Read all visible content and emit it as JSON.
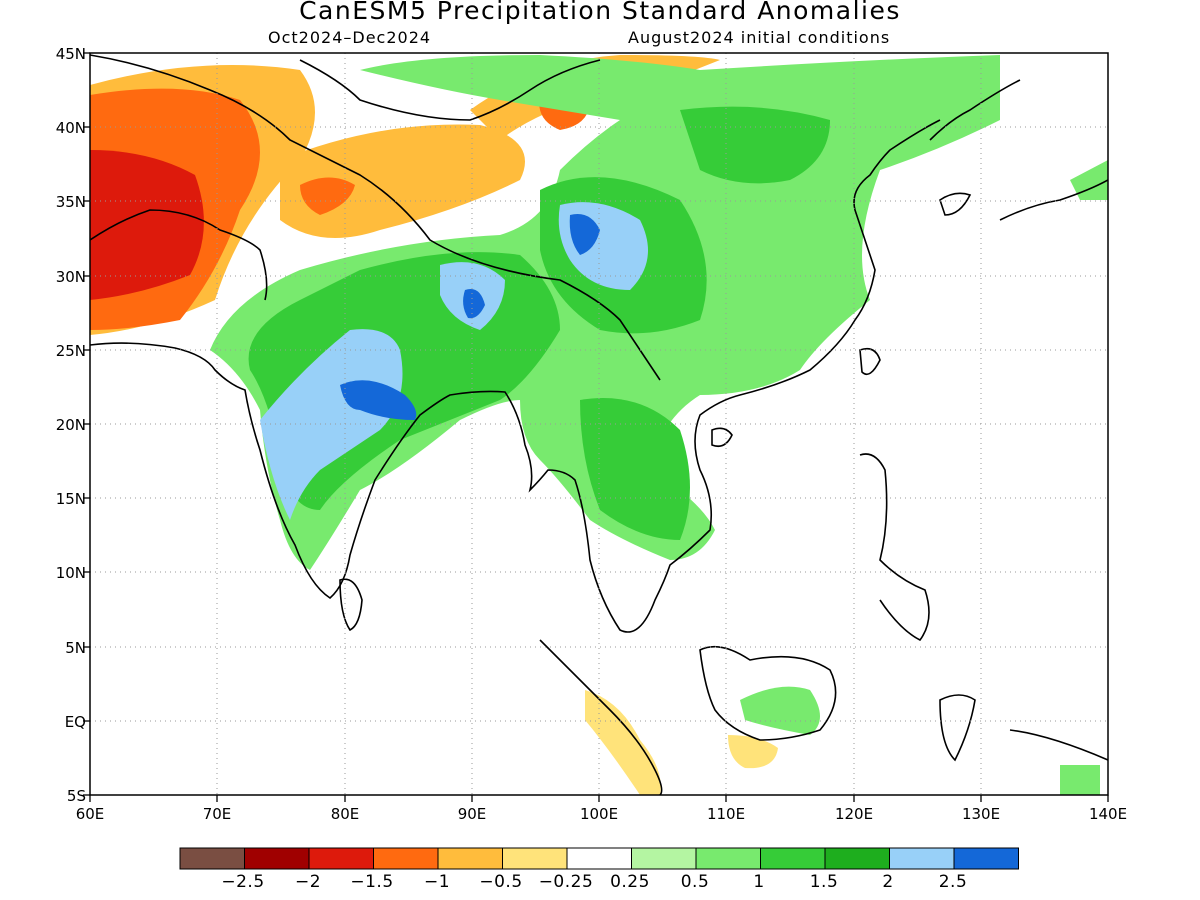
{
  "title": "CanESM5 Precipitation Standard Anomalies",
  "period": "Oct2024–Dec2024",
  "init": "August2024 initial conditions",
  "map": {
    "lon_range": [
      60,
      140
    ],
    "lat_range": [
      -5,
      45
    ],
    "x_tick_labels": [
      "60E",
      "70E",
      "80E",
      "90E",
      "100E",
      "110E",
      "120E",
      "130E",
      "140E"
    ],
    "y_tick_labels": [
      "5S",
      "EQ",
      "5N",
      "10N",
      "15N",
      "20N",
      "25N",
      "30N",
      "35N",
      "40N",
      "45N"
    ],
    "grid": "dotted",
    "coastlines": true
  },
  "colorbar": {
    "colors": [
      "#7a4e42",
      "#a00000",
      "#dd1a0c",
      "#ff6a10",
      "#ffbc3c",
      "#ffe37a",
      "#ffffff",
      "#b4f5a2",
      "#78ea6e",
      "#36cc38",
      "#1eae1e",
      "#98d0f8",
      "#1468d8"
    ],
    "labels": [
      "−2.5",
      "−2",
      "−1.5",
      "−1",
      "−0.5",
      "−0.25",
      "0.25",
      "0.5",
      "1",
      "1.5",
      "2",
      "2.5"
    ]
  }
}
